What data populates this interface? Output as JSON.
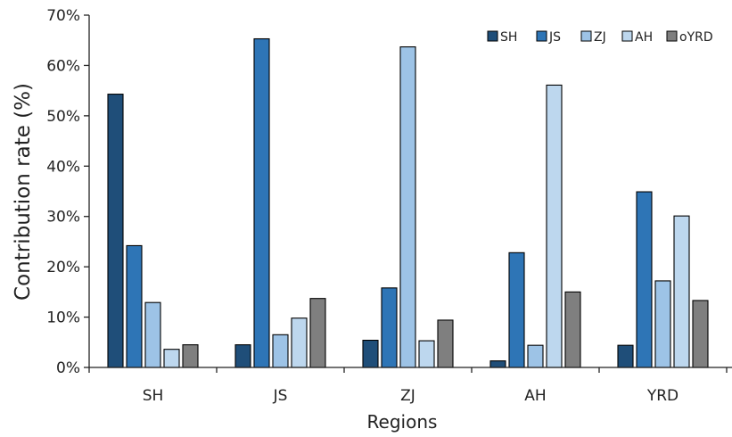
{
  "chart_data": {
    "type": "bar",
    "title": "",
    "xlabel": "Regions",
    "ylabel": "Contribution rate (%)",
    "ylim": [
      0,
      70
    ],
    "yticks": [
      0,
      10,
      20,
      30,
      40,
      50,
      60,
      70
    ],
    "ytick_labels": [
      "0%",
      "10%",
      "20%",
      "30%",
      "40%",
      "50%",
      "60%",
      "70%"
    ],
    "categories": [
      "SH",
      "JS",
      "ZJ",
      "AH",
      "YRD"
    ],
    "series": [
      {
        "name": "SH",
        "color": "#1f4e79",
        "values": [
          54.3,
          4.5,
          5.4,
          1.3,
          4.4
        ]
      },
      {
        "name": "JS",
        "color": "#2e75b6",
        "values": [
          24.2,
          65.3,
          15.8,
          22.8,
          34.9
        ]
      },
      {
        "name": "ZJ",
        "color": "#9dc3e6",
        "values": [
          12.9,
          6.5,
          63.7,
          4.4,
          17.2
        ]
      },
      {
        "name": "AH",
        "color": "#bdd7ee",
        "values": [
          3.6,
          9.8,
          5.3,
          56.1,
          30.1
        ]
      },
      {
        "name": "oYRD",
        "color": "#7f7f7f",
        "values": [
          4.5,
          13.7,
          9.4,
          15.0,
          13.3
        ]
      }
    ],
    "grid": false,
    "legend_position": "top-right"
  }
}
